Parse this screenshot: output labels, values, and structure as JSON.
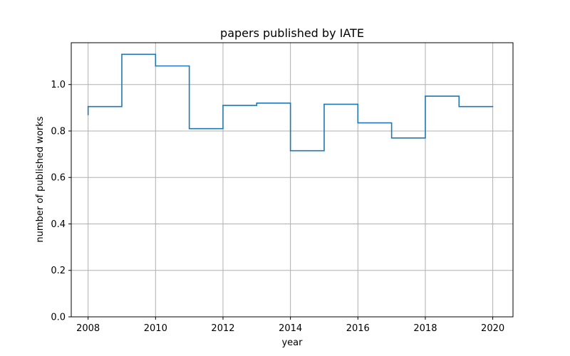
{
  "chart_data": {
    "type": "line",
    "drawstyle": "steps-post",
    "title": "papers published by IATE",
    "xlabel": "year",
    "ylabel": "number of published works",
    "xlim": [
      2007.5,
      2020.6
    ],
    "ylim": [
      0.0,
      1.18
    ],
    "xticks": [
      2008,
      2010,
      2012,
      2014,
      2016,
      2018,
      2020
    ],
    "yticks": [
      0.0,
      0.2,
      0.4,
      0.6,
      0.8,
      1.0
    ],
    "grid": true,
    "series": [
      {
        "color": "#1f77b4",
        "x": [
          2008,
          2008,
          2009,
          2010,
          2011,
          2012,
          2013,
          2014,
          2015,
          2016,
          2017,
          2018,
          2019,
          2020
        ],
        "y": [
          0.87,
          0.905,
          1.13,
          1.08,
          0.81,
          0.91,
          0.92,
          0.715,
          0.915,
          0.835,
          0.77,
          0.95,
          0.905,
          0.905
        ]
      }
    ]
  }
}
